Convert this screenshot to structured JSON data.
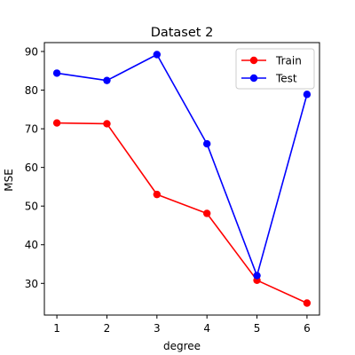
{
  "chart_data": {
    "type": "line",
    "title": "Dataset 2",
    "xlabel": "degree",
    "ylabel": "MSE",
    "x": [
      1,
      2,
      3,
      4,
      5,
      6
    ],
    "xticks": [
      "1",
      "2",
      "3",
      "4",
      "5",
      "6"
    ],
    "yticks": [
      "30",
      "40",
      "50",
      "60",
      "70",
      "80",
      "90"
    ],
    "xlim": [
      0.75,
      6.25
    ],
    "ylim": [
      21.8,
      92.3
    ],
    "grid": false,
    "legend": "top-right",
    "series": [
      {
        "name": "Train",
        "color": "#ff0000",
        "marker": "circle",
        "values": [
          71.5,
          71.3,
          53.0,
          48.1,
          30.8,
          24.9
        ]
      },
      {
        "name": "Test",
        "color": "#0000ff",
        "marker": "circle",
        "values": [
          84.4,
          82.5,
          89.2,
          66.1,
          32.0,
          78.9
        ]
      }
    ]
  }
}
